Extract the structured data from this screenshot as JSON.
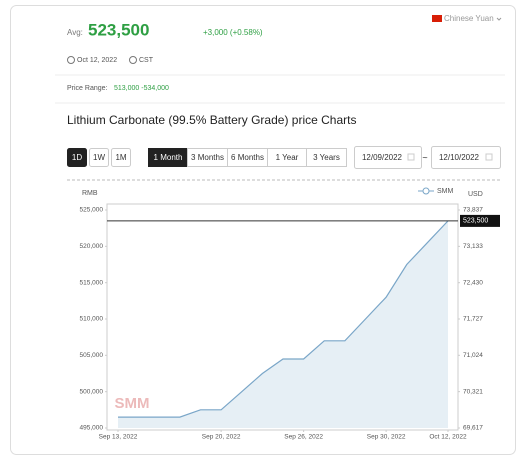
{
  "header": {
    "avg_label": "Avg:",
    "avg": "523,500",
    "change": "+3,000 (+0.58%)",
    "currency": "Chinese Yuan",
    "date": "Oct 12, 2022",
    "timezone": "CST",
    "price_range_label": "Price Range:",
    "price_range": "513,000 -534,000",
    "title": "Lithium Carbonate (99.5% Battery Grade) price Charts"
  },
  "controls": {
    "intervals": [
      "1D",
      "1W",
      "1M"
    ],
    "ranges": [
      "1 Month",
      "3 Months",
      "6 Months",
      "1 Year",
      "3 Years"
    ],
    "date_from": "12/09/2022",
    "date_separator": "~",
    "date_to": "12/10/2022"
  },
  "chart_data": {
    "type": "area",
    "y_label": "RMB",
    "y2_label": "USD",
    "categories": [
      "Sep 13, 2022",
      null,
      null,
      null,
      null,
      "Sep 20, 2022",
      null,
      null,
      null,
      "Sep 26, 2022",
      null,
      null,
      null,
      "Sep 30, 2022",
      null,
      null,
      "Oct 12, 2022"
    ],
    "series": [
      {
        "name": "SMM",
        "color": "#7aa6c8",
        "values": [
          496500,
          496500,
          496500,
          496500,
          497500,
          497500,
          500000,
          502500,
          504500,
          504500,
          507000,
          507000,
          510000,
          513000,
          517500,
          520500,
          523500
        ]
      }
    ],
    "ylim": [
      495000,
      525000
    ],
    "yticks": [
      {
        "value": 525000,
        "label": "525,000"
      },
      {
        "value": 520000,
        "label": "520,000"
      },
      {
        "value": 515000,
        "label": "515,000"
      },
      {
        "value": 510000,
        "label": "510,000"
      },
      {
        "value": 505000,
        "label": "505,000"
      },
      {
        "value": 500000,
        "label": "500,000"
      },
      {
        "value": 495000,
        "label": "495,000"
      }
    ],
    "y2lim": [
      69617,
      73837
    ],
    "y2ticks": [
      {
        "value": 73837,
        "label": "73,837"
      },
      {
        "value": 73133,
        "label": "73,133"
      },
      {
        "value": 72430,
        "label": "72,430"
      },
      {
        "value": 71727,
        "label": "71,727"
      },
      {
        "value": 71024,
        "label": "71,024"
      },
      {
        "value": 70321,
        "label": "70,321"
      },
      {
        "value": 69617,
        "label": "69,617"
      }
    ],
    "price_line": {
      "value": 523500,
      "label": "523,500"
    },
    "watermark": "SMM"
  }
}
